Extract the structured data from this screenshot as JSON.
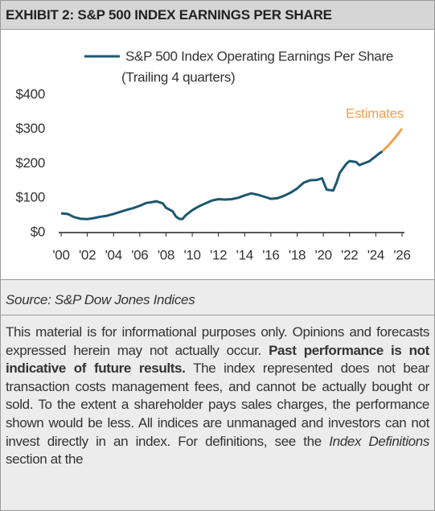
{
  "header": {
    "title": "EXHIBIT 2: S&P 500 INDEX EARNINGS PER SHARE"
  },
  "chart_data": {
    "type": "line",
    "legend_note": "(Trailing 4 quarters)",
    "annotation": "Estimates",
    "x": [
      2000,
      2000.5,
      2001,
      2001.5,
      2002,
      2002.5,
      2003,
      2003.5,
      2004,
      2004.5,
      2005,
      2005.5,
      2006,
      2006.5,
      2007,
      2007.25,
      2007.75,
      2008,
      2008.5,
      2008.75,
      2009,
      2009.25,
      2009.5,
      2010,
      2010.5,
      2011,
      2011.5,
      2012,
      2012.5,
      2013,
      2013.5,
      2014,
      2014.5,
      2015,
      2015.5,
      2016,
      2016.5,
      2017,
      2017.5,
      2018,
      2018.5,
      2019,
      2019.5,
      2019.9,
      2020.25,
      2020.75,
      2021,
      2021.25,
      2021.75,
      2022,
      2022.5,
      2022.75,
      2023,
      2023.5,
      2024,
      2024.25,
      2024.5,
      2025,
      2025.5,
      2026
    ],
    "series": [
      {
        "name": "S&P 500 Index Operating Earnings Per Share",
        "color": "#1c5770",
        "values": [
          56,
          54,
          45,
          40,
          39,
          42,
          46,
          49,
          54,
          60,
          66,
          71,
          78,
          86,
          89,
          91,
          85,
          72,
          62,
          47,
          40,
          39,
          50,
          65,
          76,
          85,
          93,
          97,
          96,
          97,
          101,
          108,
          114,
          110,
          104,
          98,
          100,
          107,
          116,
          128,
          145,
          152,
          153,
          158,
          125,
          122,
          145,
          173,
          200,
          208,
          205,
          196,
          200,
          207,
          222,
          230,
          236,
          null,
          null,
          null
        ]
      },
      {
        "name": "Estimates",
        "color": "#f0a050",
        "values": [
          null,
          null,
          null,
          null,
          null,
          null,
          null,
          null,
          null,
          null,
          null,
          null,
          null,
          null,
          null,
          null,
          null,
          null,
          null,
          null,
          null,
          null,
          null,
          null,
          null,
          null,
          null,
          null,
          null,
          null,
          null,
          null,
          null,
          null,
          null,
          null,
          null,
          null,
          null,
          null,
          null,
          null,
          null,
          null,
          null,
          null,
          null,
          null,
          null,
          null,
          null,
          null,
          null,
          null,
          null,
          null,
          236,
          255,
          277,
          302
        ]
      }
    ],
    "xlim": [
      2000,
      2026
    ],
    "xticks": [
      {
        "value": 2000,
        "label": "'00"
      },
      {
        "value": 2002,
        "label": "'02"
      },
      {
        "value": 2004,
        "label": "'04"
      },
      {
        "value": 2006,
        "label": "'06"
      },
      {
        "value": 2008,
        "label": "'08"
      },
      {
        "value": 2010,
        "label": "'10"
      },
      {
        "value": 2012,
        "label": "'12"
      },
      {
        "value": 2014,
        "label": "'14"
      },
      {
        "value": 2016,
        "label": "'16"
      },
      {
        "value": 2018,
        "label": "'18"
      },
      {
        "value": 2020,
        "label": "'20"
      },
      {
        "value": 2022,
        "label": "'22"
      },
      {
        "value": 2024,
        "label": "'24"
      },
      {
        "value": 2026,
        "label": "'26"
      }
    ],
    "ylim": [
      0,
      400
    ],
    "yticks": [
      {
        "value": 0,
        "label": "$0"
      },
      {
        "value": 100,
        "label": "$100"
      },
      {
        "value": 200,
        "label": "$200"
      },
      {
        "value": 300,
        "label": "$300"
      },
      {
        "value": 400,
        "label": "$400"
      }
    ],
    "grid": false
  },
  "footer": {
    "source": "Source: S&P Dow Jones Indices",
    "disclaimer": [
      "This material is for informational purposes only. Opinions and forecasts expressed herein may not actually occur. ",
      "Past performance is not indicative of future results.",
      " The index represented does not bear transaction costs management fees, and cannot be actually bought or sold. To the extent a shareholder pays sales charges, the performance shown would be less. All indices are unmanaged and investors can not invest directly in an index. For definitions, see the ",
      "Index Definitions",
      " section at the"
    ]
  }
}
